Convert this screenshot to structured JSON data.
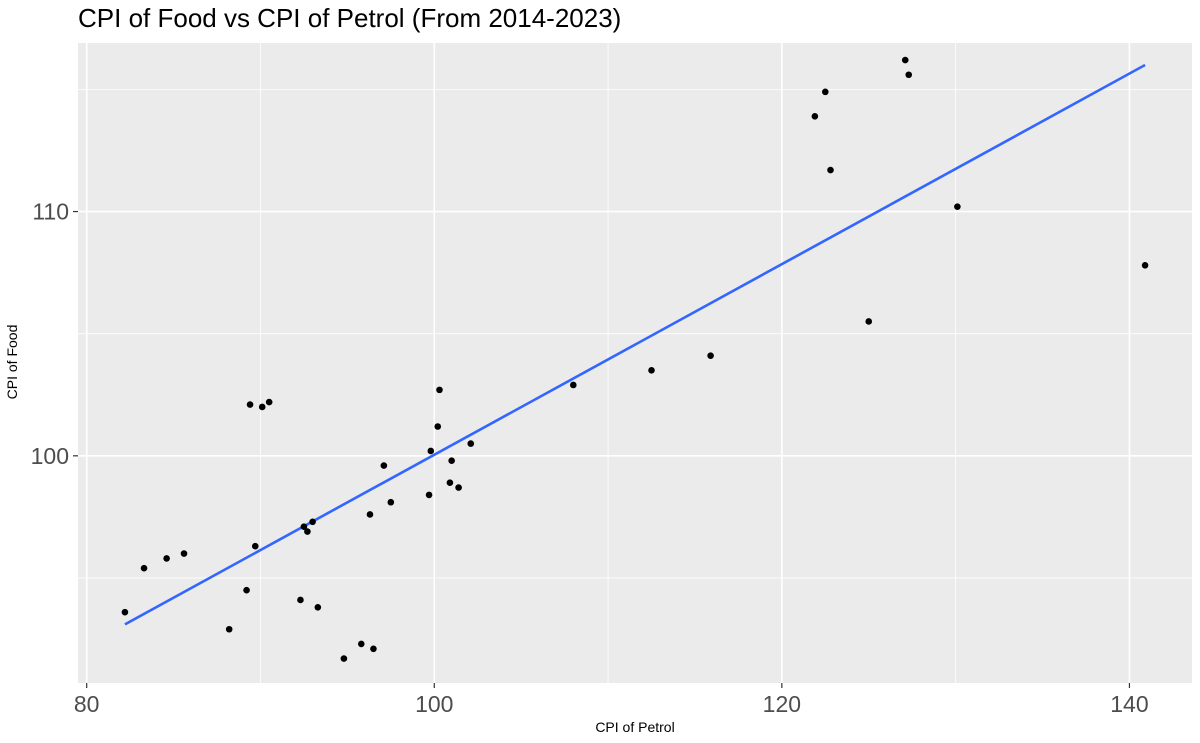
{
  "chart_data": {
    "type": "scatter",
    "title": "CPI of Food vs CPI of Petrol (From 2014-2023)",
    "xlabel": "CPI of Petrol",
    "ylabel": "CPI of Food",
    "xlim": [
      79.5,
      143.6
    ],
    "ylim": [
      90.7,
      116.9
    ],
    "x_ticks": [
      80,
      100,
      120,
      140
    ],
    "y_ticks": [
      100,
      110
    ],
    "grid": true,
    "background": "#ebebeb",
    "grid_color": "#ffffff",
    "point_color": "#000000",
    "trend_color": "#3366ff",
    "points": [
      {
        "x": 82.2,
        "y": 93.6
      },
      {
        "x": 83.3,
        "y": 95.4
      },
      {
        "x": 84.6,
        "y": 95.8
      },
      {
        "x": 85.6,
        "y": 96.0
      },
      {
        "x": 88.2,
        "y": 92.9
      },
      {
        "x": 89.2,
        "y": 94.5
      },
      {
        "x": 89.4,
        "y": 102.1
      },
      {
        "x": 89.7,
        "y": 96.3
      },
      {
        "x": 90.1,
        "y": 102.0
      },
      {
        "x": 90.5,
        "y": 102.2
      },
      {
        "x": 92.3,
        "y": 94.1
      },
      {
        "x": 92.5,
        "y": 97.1
      },
      {
        "x": 92.7,
        "y": 96.9
      },
      {
        "x": 93.0,
        "y": 97.3
      },
      {
        "x": 93.3,
        "y": 93.8
      },
      {
        "x": 94.8,
        "y": 91.7
      },
      {
        "x": 95.8,
        "y": 92.3
      },
      {
        "x": 96.3,
        "y": 97.6
      },
      {
        "x": 96.5,
        "y": 92.1
      },
      {
        "x": 97.1,
        "y": 99.6
      },
      {
        "x": 97.5,
        "y": 98.1
      },
      {
        "x": 99.7,
        "y": 98.4
      },
      {
        "x": 99.8,
        "y": 100.2
      },
      {
        "x": 100.2,
        "y": 101.2
      },
      {
        "x": 100.3,
        "y": 102.7
      },
      {
        "x": 100.9,
        "y": 98.9
      },
      {
        "x": 101.0,
        "y": 99.8
      },
      {
        "x": 101.4,
        "y": 98.7
      },
      {
        "x": 102.1,
        "y": 100.5
      },
      {
        "x": 108.0,
        "y": 102.9
      },
      {
        "x": 112.5,
        "y": 103.5
      },
      {
        "x": 115.9,
        "y": 104.1
      },
      {
        "x": 121.9,
        "y": 113.9
      },
      {
        "x": 122.5,
        "y": 114.9
      },
      {
        "x": 122.8,
        "y": 111.7
      },
      {
        "x": 125.0,
        "y": 105.5
      },
      {
        "x": 127.1,
        "y": 116.2
      },
      {
        "x": 127.3,
        "y": 115.6
      },
      {
        "x": 130.1,
        "y": 110.2
      },
      {
        "x": 140.9,
        "y": 107.8
      }
    ],
    "trend_line": {
      "x": [
        82.2,
        140.9
      ],
      "y": [
        93.1,
        116.0
      ]
    }
  }
}
